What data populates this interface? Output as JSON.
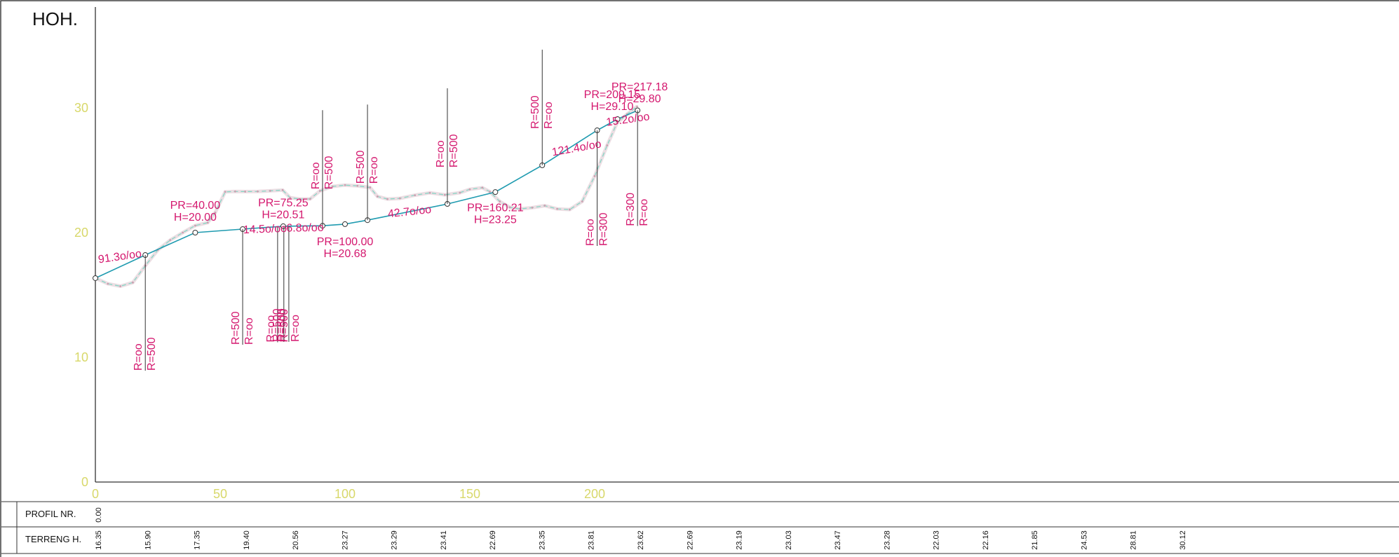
{
  "title": "HOH.",
  "band": {
    "profil_label": "PROFIL NR.",
    "profil_first": "0.00",
    "terreng_label": "TERRENG H."
  },
  "chart_data": {
    "type": "line",
    "xlim": [
      0,
      260
    ],
    "ylim": [
      0,
      38
    ],
    "x_ticks": [
      0,
      50,
      100,
      150,
      200
    ],
    "y_ticks": [
      0,
      10,
      20,
      30
    ],
    "grid": false,
    "series": [
      {
        "x": [
          0,
          20,
          40,
          59,
          75.25,
          91,
          100,
          109,
          141,
          160.21,
          179,
          201,
          209.15,
          217.18
        ],
        "y": [
          16.35,
          18.2,
          20.0,
          20.28,
          20.51,
          20.55,
          20.68,
          21.0,
          22.3,
          23.25,
          25.4,
          28.2,
          29.1,
          29.8
        ]
      },
      {
        "x": [
          0,
          5,
          10,
          15,
          20,
          25,
          30,
          35,
          40,
          45,
          48,
          52,
          56,
          60,
          65,
          70,
          75,
          78,
          82,
          86,
          90,
          95,
          100,
          105,
          110,
          113,
          117,
          122,
          128,
          134,
          140,
          146,
          150,
          155,
          158,
          162,
          166,
          170,
          175,
          180,
          185,
          190,
          195,
          200,
          205,
          209,
          213,
          217
        ],
        "y": [
          16.35,
          15.9,
          15.7,
          16.0,
          17.35,
          18.6,
          19.4,
          20.0,
          20.56,
          20.8,
          21.6,
          23.27,
          23.3,
          23.29,
          23.3,
          23.35,
          23.41,
          22.8,
          22.69,
          22.7,
          23.35,
          23.7,
          23.81,
          23.75,
          23.62,
          22.9,
          22.69,
          22.75,
          23.0,
          23.19,
          23.03,
          23.2,
          23.47,
          23.6,
          23.28,
          22.5,
          22.03,
          21.9,
          22.0,
          22.16,
          21.9,
          21.85,
          22.5,
          24.53,
          27.0,
          28.81,
          29.5,
          30.12
        ]
      }
    ],
    "grade_labels": [
      "91.3o/oo",
      "14.5o/oo",
      "6.8o/oo",
      "42.7o/oo",
      "121.4o/oo",
      "15.2o/oo"
    ],
    "vertical_points": [
      {
        "pr": "PR=40.00",
        "h": "H=20.00"
      },
      {
        "pr": "PR=75.25",
        "h": "H=20.51"
      },
      {
        "pr": "PR=100.00",
        "h": "H=20.68"
      },
      {
        "pr": "PR=160.21",
        "h": "H=23.25"
      },
      {
        "pr": "PR=209.15",
        "h": "H=29.10"
      },
      {
        "pr": "PR=217.18",
        "h": "H=29.80"
      }
    ],
    "curve_markers": [
      {
        "x": 20,
        "up": false,
        "labels": [
          "R=oo",
          "R=500"
        ]
      },
      {
        "x": 59,
        "up": false,
        "labels": [
          "R=500",
          "R=oo"
        ]
      },
      {
        "x": 73,
        "up": false,
        "labels": [
          "R=oo",
          "R=500"
        ]
      },
      {
        "x": 75.5,
        "up": false,
        "labels": [
          "R=500"
        ]
      },
      {
        "x": 77.5,
        "up": false,
        "labels": [
          "R=500",
          "R=oo"
        ]
      },
      {
        "x": 91,
        "up": true,
        "labels": [
          "R=oo",
          "R=500"
        ]
      },
      {
        "x": 109,
        "up": true,
        "labels": [
          "R=500",
          "R=oo"
        ]
      },
      {
        "x": 141,
        "up": true,
        "labels": [
          "R=oo",
          "R=500"
        ]
      },
      {
        "x": 179,
        "up": true,
        "labels": [
          "R=500",
          "R=oo"
        ]
      },
      {
        "x": 201,
        "up": false,
        "labels": [
          "R=oo",
          "R=300"
        ]
      },
      {
        "x": 217.18,
        "up": false,
        "labels": [
          "R=300",
          "R=oo"
        ]
      }
    ],
    "terrain_heights": [
      "16.35",
      "15.90",
      "17.35",
      "19.40",
      "20.56",
      "23.27",
      "23.29",
      "23.41",
      "22.69",
      "23.35",
      "23.81",
      "23.62",
      "22.69",
      "23.19",
      "23.03",
      "23.47",
      "23.28",
      "22.03",
      "22.16",
      "21.85",
      "24.53",
      "28.81",
      "30.12"
    ]
  },
  "colors": {
    "axis": "#333333",
    "tick": "#d8d86a",
    "road": "#1f9bb0",
    "terrain": "#c9a0b0",
    "terrain_alt": "#7fd6c4",
    "annotation": "#d4176e"
  }
}
